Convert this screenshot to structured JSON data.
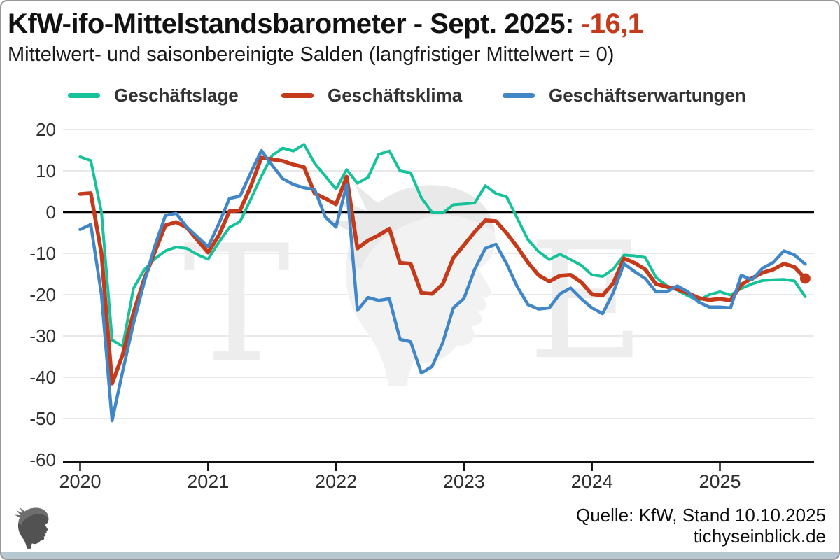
{
  "header": {
    "title_main": "KfW-ifo-Mittelstandsbarometer - Sept. 2025:",
    "title_value": "-16,1",
    "accent_color": "#c43a1b",
    "subtitle": "Mittelwert- und saisonbereinigte Salden (langfristiger Mittelwert = 0)"
  },
  "footer": {
    "source": "Quelle: KfW, Stand 10.10.2025",
    "site": "tichyseinblick.de"
  },
  "watermark": {
    "left_letter": "T",
    "right_letter": "E"
  },
  "chart_data": {
    "type": "line",
    "title": "KfW-ifo-Mittelstandsbarometer - Sept. 2025: -16,1",
    "subtitle": "Mittelwert- und saisonbereinigte Salden (langfristiger Mittelwert = 0)",
    "frequency": "monthly",
    "x_start": "2020-01",
    "x_end": "2025-09",
    "x_tick_labels": [
      "2020",
      "2021",
      "2022",
      "2023",
      "2024",
      "2025"
    ],
    "y_ticks": [
      20,
      10,
      0,
      -10,
      -20,
      -30,
      -40,
      -50,
      -60
    ],
    "ylim": [
      -60,
      20
    ],
    "grid": "horizontal-light, zero-line-black",
    "legend_position": "top",
    "x_months": [
      "2020-01",
      "2020-02",
      "2020-03",
      "2020-04",
      "2020-05",
      "2020-06",
      "2020-07",
      "2020-08",
      "2020-09",
      "2020-10",
      "2020-11",
      "2020-12",
      "2021-01",
      "2021-02",
      "2021-03",
      "2021-04",
      "2021-05",
      "2021-06",
      "2021-07",
      "2021-08",
      "2021-09",
      "2021-10",
      "2021-11",
      "2021-12",
      "2022-01",
      "2022-02",
      "2022-03",
      "2022-04",
      "2022-05",
      "2022-06",
      "2022-07",
      "2022-08",
      "2022-09",
      "2022-10",
      "2022-11",
      "2022-12",
      "2023-01",
      "2023-02",
      "2023-03",
      "2023-04",
      "2023-05",
      "2023-06",
      "2023-07",
      "2023-08",
      "2023-09",
      "2023-10",
      "2023-11",
      "2023-12",
      "2024-01",
      "2024-02",
      "2024-03",
      "2024-04",
      "2024-05",
      "2024-06",
      "2024-07",
      "2024-08",
      "2024-09",
      "2024-10",
      "2024-11",
      "2024-12",
      "2025-01",
      "2025-02",
      "2025-03",
      "2025-04",
      "2025-05",
      "2025-06",
      "2025-07",
      "2025-08",
      "2025-09"
    ],
    "series": [
      {
        "name": "Geschäftslage",
        "color": "#15c29a",
        "values": [
          13.4,
          12.5,
          0.0,
          -31.0,
          -32.5,
          -18.5,
          -14.0,
          -11.3,
          -9.4,
          -8.5,
          -8.8,
          -10.3,
          -11.4,
          -7.4,
          -3.7,
          -2.3,
          3.1,
          8.7,
          13.7,
          15.5,
          14.8,
          16.4,
          11.8,
          8.7,
          5.6,
          10.3,
          7.0,
          8.4,
          14.0,
          14.8,
          10.0,
          9.5,
          3.5,
          0.0,
          -0.2,
          1.8,
          2.0,
          2.2,
          6.4,
          4.5,
          3.7,
          -1.5,
          -6.7,
          -9.6,
          -11.5,
          -10.2,
          -11.5,
          -12.9,
          -15.2,
          -15.6,
          -13.8,
          -10.4,
          -10.6,
          -11.0,
          -15.8,
          -17.8,
          -18.9,
          -20.3,
          -21.4,
          -20.0,
          -19.3,
          -20.1,
          -18.5,
          -17.4,
          -16.6,
          -16.4,
          -16.3,
          -16.7,
          -20.5
        ]
      },
      {
        "name": "Geschäftsklima",
        "color": "#c43a1b",
        "end_marker": true,
        "values": [
          4.4,
          4.6,
          -10.0,
          -41.5,
          -34.5,
          -24.4,
          -16.3,
          -9.7,
          -3.2,
          -2.4,
          -3.7,
          -6.8,
          -9.8,
          -5.7,
          0.2,
          0.4,
          6.2,
          13.2,
          12.8,
          12.4,
          11.5,
          10.9,
          4.5,
          3.3,
          1.9,
          8.6,
          -8.8,
          -6.9,
          -5.6,
          -4.0,
          -12.3,
          -12.5,
          -19.6,
          -19.8,
          -17.5,
          -11.1,
          -8.0,
          -4.8,
          -2.0,
          -2.2,
          -5.1,
          -8.5,
          -12.2,
          -15.3,
          -16.8,
          -15.4,
          -15.2,
          -17.0,
          -19.9,
          -20.2,
          -17.2,
          -11.2,
          -12.3,
          -13.9,
          -17.4,
          -18.1,
          -18.7,
          -19.6,
          -20.8,
          -21.3,
          -21.0,
          -21.4,
          -17.6,
          -16.0,
          -14.7,
          -13.9,
          -12.5,
          -13.3,
          -16.1
        ]
      },
      {
        "name": "Geschäftserwartungen",
        "color": "#4186c6",
        "values": [
          -4.2,
          -3.0,
          -20.0,
          -50.5,
          -38.5,
          -27.0,
          -17.1,
          -8.3,
          -0.8,
          -0.3,
          -3.6,
          -6.0,
          -8.4,
          -2.9,
          3.3,
          3.9,
          9.5,
          14.9,
          11.4,
          8.1,
          6.7,
          5.9,
          5.5,
          -1.2,
          -3.6,
          6.6,
          -23.8,
          -20.7,
          -21.4,
          -21.0,
          -30.8,
          -31.4,
          -39.0,
          -37.4,
          -31.7,
          -23.2,
          -20.9,
          -13.9,
          -8.8,
          -7.8,
          -12.5,
          -18.1,
          -22.4,
          -23.5,
          -23.2,
          -19.8,
          -18.4,
          -21.0,
          -23.2,
          -24.6,
          -19.5,
          -12.5,
          -14.4,
          -16.1,
          -19.3,
          -19.3,
          -17.9,
          -19.3,
          -21.8,
          -23.0,
          -23.0,
          -23.2,
          -15.3,
          -16.4,
          -13.6,
          -12.2,
          -9.4,
          -10.4,
          -12.6
        ]
      }
    ],
    "last_point": {
      "series": "Geschäftsklima",
      "month": "2025-09",
      "value": -16.1,
      "marker": "dot"
    }
  }
}
